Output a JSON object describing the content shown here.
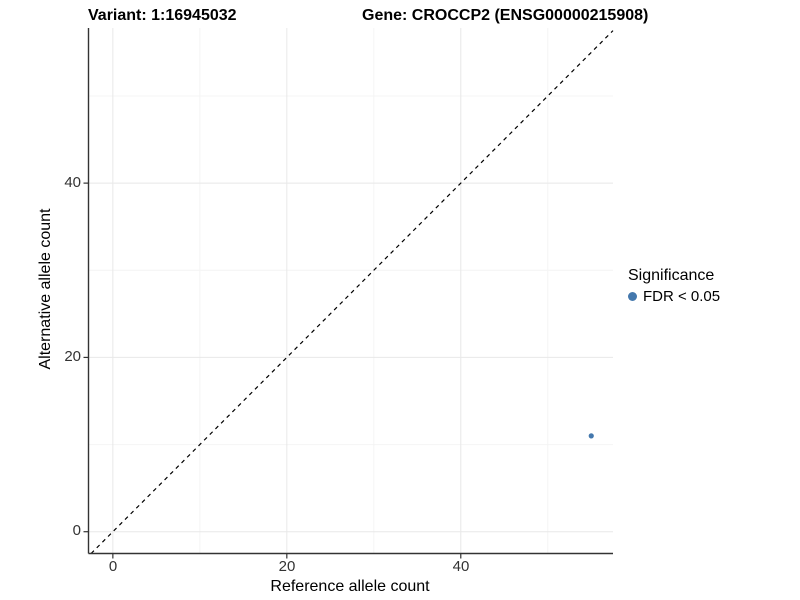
{
  "titles": {
    "variant": "Variant: 1:16945032",
    "gene": "Gene: CROCCP2 (ENSG00000215908)"
  },
  "axes": {
    "x": {
      "label": "Reference allele count",
      "ticks": [
        "0",
        "20",
        "40"
      ]
    },
    "y": {
      "label": "Alternative allele count",
      "ticks": [
        "0",
        "20",
        "40"
      ]
    }
  },
  "legend": {
    "title": "Significance",
    "items": [
      {
        "label": "FDR < 0.05",
        "marker": "circle-icon",
        "color": "#4478ad"
      }
    ]
  },
  "colors": {
    "point": "#4478ad",
    "grid_major": "#e8e8e8",
    "grid_minor": "#f4f4f4",
    "axis": "#333333",
    "identity_line": "#000000",
    "background": "#ffffff"
  },
  "chart_data": {
    "type": "scatter",
    "title": "Variant: 1:16945032  /  Gene: CROCCP2 (ENSG00000215908)",
    "xlabel": "Reference allele count",
    "ylabel": "Alternative allele count",
    "xlim": [
      -2.8,
      57.5
    ],
    "ylim": [
      -2.5,
      57.8
    ],
    "xticks": [
      0,
      20,
      40
    ],
    "yticks": [
      0,
      20,
      40
    ],
    "minor_xticks": [
      10,
      30,
      50
    ],
    "minor_yticks": [
      10,
      30,
      50
    ],
    "grid": true,
    "legend_position": "right",
    "series": [
      {
        "name": "FDR < 0.05",
        "color": "#4478ad",
        "marker_radius": 2.6,
        "points": [
          {
            "x": 55,
            "y": 11
          }
        ]
      }
    ],
    "reference_line": {
      "type": "identity",
      "style": "dashed",
      "from": [
        -2.5,
        -2.5
      ],
      "to": [
        57.5,
        57.5
      ]
    }
  }
}
